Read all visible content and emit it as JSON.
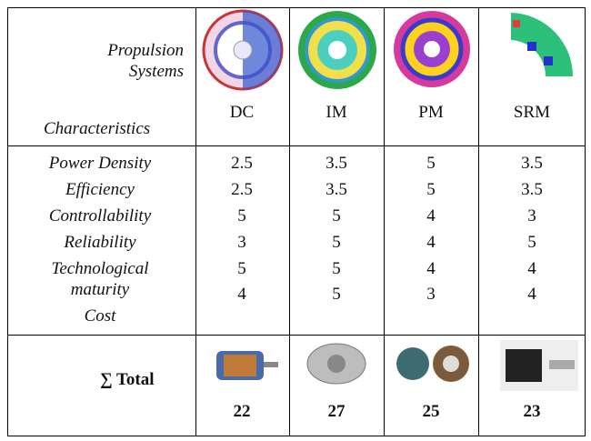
{
  "header": {
    "corner_top": "Propulsion Systems",
    "corner_bottom": "Characteristics",
    "columns": [
      "DC",
      "IM",
      "PM",
      "SRM"
    ]
  },
  "characteristics": [
    "Power Density",
    "Efficiency",
    "Controllability",
    "Reliability",
    "Technological maturity",
    "Cost"
  ],
  "scores": [
    [
      2.5,
      2.5,
      5,
      3,
      5,
      4
    ],
    [
      3.5,
      3.5,
      5,
      5,
      5,
      5
    ],
    [
      5,
      5,
      4,
      4,
      4,
      3
    ],
    [
      3.5,
      3.5,
      3,
      5,
      4,
      4
    ]
  ],
  "total": {
    "label": "∑ Total",
    "values": [
      22,
      27,
      25,
      23
    ]
  }
}
